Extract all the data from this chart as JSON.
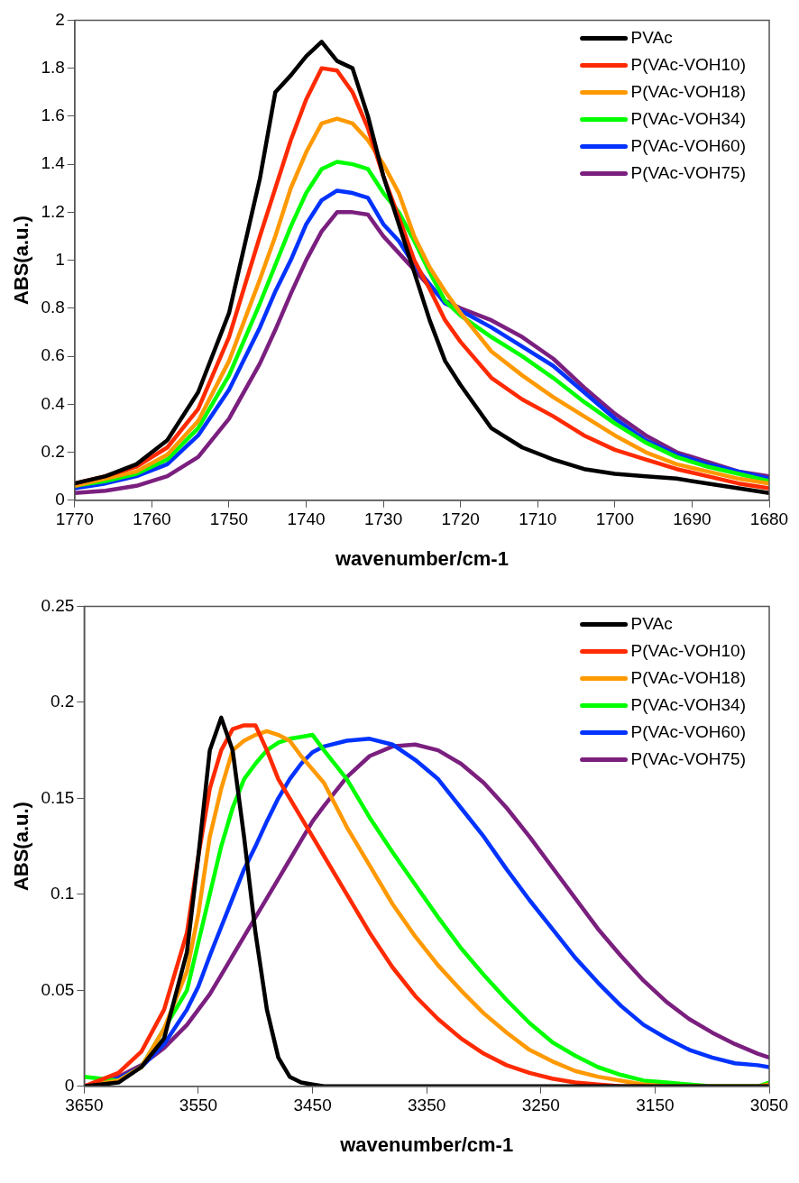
{
  "chart_data": [
    {
      "type": "line",
      "xlabel": "wavenumber/cm-1",
      "ylabel": "ABS(a.u.)",
      "xlim": [
        1770,
        1680
      ],
      "ylim": [
        0,
        2
      ],
      "xticks": [
        1770,
        1760,
        1750,
        1740,
        1730,
        1720,
        1710,
        1700,
        1690,
        1680
      ],
      "yticks": [
        0,
        0.2,
        0.4,
        0.6,
        0.8,
        1,
        1.2,
        1.4,
        1.6,
        1.8,
        2
      ],
      "grid": false,
      "legend": "top right",
      "marker": "none",
      "line_style": "solid",
      "x": [
        1770,
        1766,
        1762,
        1758,
        1754,
        1750,
        1746,
        1744,
        1742,
        1740,
        1738,
        1736,
        1734,
        1732,
        1730,
        1728,
        1726,
        1724,
        1722,
        1720,
        1716,
        1712,
        1708,
        1704,
        1700,
        1696,
        1692,
        1688,
        1684,
        1680
      ],
      "series": [
        {
          "name": "PVAc",
          "color": "#000000",
          "values": [
            0.07,
            0.1,
            0.15,
            0.25,
            0.45,
            0.78,
            1.34,
            1.7,
            1.77,
            1.85,
            1.91,
            1.83,
            1.8,
            1.6,
            1.35,
            1.15,
            0.95,
            0.75,
            0.58,
            0.48,
            0.3,
            0.22,
            0.17,
            0.13,
            0.11,
            0.1,
            0.09,
            0.07,
            0.05,
            0.03
          ]
        },
        {
          "name": "P(VAc-VOH10)",
          "color": "#ff2a00",
          "values": [
            0.07,
            0.1,
            0.14,
            0.22,
            0.38,
            0.68,
            1.1,
            1.3,
            1.5,
            1.67,
            1.8,
            1.79,
            1.7,
            1.55,
            1.35,
            1.18,
            1.0,
            0.88,
            0.75,
            0.66,
            0.51,
            0.42,
            0.35,
            0.27,
            0.21,
            0.17,
            0.13,
            0.1,
            0.07,
            0.05
          ]
        },
        {
          "name": "P(VAc-VOH18)",
          "color": "#ff9900",
          "values": [
            0.06,
            0.09,
            0.12,
            0.19,
            0.33,
            0.58,
            0.92,
            1.1,
            1.3,
            1.45,
            1.57,
            1.59,
            1.57,
            1.5,
            1.4,
            1.28,
            1.1,
            0.97,
            0.87,
            0.78,
            0.62,
            0.52,
            0.43,
            0.35,
            0.27,
            0.2,
            0.15,
            0.12,
            0.09,
            0.07
          ]
        },
        {
          "name": "P(VAc-VOH34)",
          "color": "#00ff00",
          "values": [
            0.06,
            0.08,
            0.11,
            0.17,
            0.3,
            0.52,
            0.82,
            0.98,
            1.14,
            1.28,
            1.38,
            1.41,
            1.4,
            1.38,
            1.28,
            1.2,
            1.08,
            0.95,
            0.83,
            0.77,
            0.68,
            0.6,
            0.51,
            0.41,
            0.32,
            0.24,
            0.18,
            0.14,
            0.11,
            0.08
          ]
        },
        {
          "name": "P(VAc-VOH60)",
          "color": "#0033ff",
          "values": [
            0.05,
            0.07,
            0.1,
            0.15,
            0.27,
            0.46,
            0.72,
            0.87,
            1.0,
            1.15,
            1.25,
            1.29,
            1.28,
            1.26,
            1.15,
            1.08,
            0.98,
            0.9,
            0.82,
            0.79,
            0.72,
            0.64,
            0.56,
            0.45,
            0.34,
            0.25,
            0.19,
            0.15,
            0.12,
            0.09
          ]
        },
        {
          "name": "P(VAc-VOH75)",
          "color": "#7b1f7f",
          "values": [
            0.03,
            0.04,
            0.06,
            0.1,
            0.18,
            0.34,
            0.57,
            0.71,
            0.86,
            1.0,
            1.12,
            1.2,
            1.2,
            1.19,
            1.1,
            1.03,
            0.96,
            0.89,
            0.83,
            0.8,
            0.75,
            0.68,
            0.59,
            0.47,
            0.36,
            0.27,
            0.2,
            0.16,
            0.12,
            0.1
          ]
        }
      ]
    },
    {
      "type": "line",
      "xlabel": "wavenumber/cm-1",
      "ylabel": "ABS(a.u.)",
      "xlim": [
        3650,
        3050
      ],
      "ylim": [
        0,
        0.25
      ],
      "xticks": [
        3650,
        3550,
        3450,
        3350,
        3250,
        3150,
        3050
      ],
      "yticks": [
        0,
        0.05,
        0.1,
        0.15,
        0.2,
        0.25
      ],
      "grid": false,
      "legend": "top right",
      "marker": "none",
      "line_style": "solid",
      "x": [
        3650,
        3620,
        3600,
        3580,
        3560,
        3550,
        3540,
        3530,
        3520,
        3510,
        3500,
        3490,
        3480,
        3470,
        3460,
        3450,
        3440,
        3420,
        3400,
        3380,
        3360,
        3340,
        3320,
        3300,
        3280,
        3260,
        3240,
        3220,
        3200,
        3180,
        3160,
        3140,
        3120,
        3100,
        3080,
        3060,
        3050
      ],
      "series": [
        {
          "name": "PVAc",
          "color": "#000000",
          "values": [
            0,
            0.002,
            0.01,
            0.025,
            0.07,
            0.12,
            0.175,
            0.192,
            0.175,
            0.13,
            0.08,
            0.04,
            0.015,
            0.005,
            0.002,
            0.001,
            0,
            0,
            0,
            0,
            0,
            0,
            0,
            0,
            0,
            0,
            0,
            0,
            0,
            0,
            0,
            0,
            0,
            0,
            0,
            0,
            0
          ]
        },
        {
          "name": "P(VAc-VOH10)",
          "color": "#ff2a00",
          "values": [
            0,
            0.007,
            0.018,
            0.04,
            0.08,
            0.12,
            0.155,
            0.175,
            0.186,
            0.188,
            0.188,
            0.175,
            0.16,
            0.15,
            0.14,
            0.13,
            0.12,
            0.1,
            0.08,
            0.062,
            0.047,
            0.035,
            0.025,
            0.017,
            0.011,
            0.007,
            0.004,
            0.002,
            0.001,
            0,
            0,
            null,
            null,
            null,
            null,
            null,
            null
          ]
        },
        {
          "name": "P(VAc-VOH18)",
          "color": "#ff9900",
          "values": [
            0,
            0.003,
            0.01,
            0.03,
            0.06,
            0.09,
            0.13,
            0.155,
            0.175,
            0.18,
            0.183,
            0.185,
            0.183,
            0.18,
            0.172,
            0.165,
            0.158,
            0.135,
            0.115,
            0.095,
            0.078,
            0.063,
            0.05,
            0.038,
            0.028,
            0.019,
            0.013,
            0.008,
            0.005,
            0.003,
            0.001,
            0,
            0,
            0,
            0,
            0,
            0.001
          ]
        },
        {
          "name": "P(VAc-VOH34)",
          "color": "#00ff00",
          "values": [
            0.005,
            0.003,
            0.01,
            0.03,
            0.05,
            0.075,
            0.1,
            0.125,
            0.145,
            0.16,
            0.168,
            0.175,
            0.179,
            0.181,
            0.182,
            0.183,
            0.175,
            0.16,
            0.14,
            0.122,
            0.105,
            0.088,
            0.072,
            0.058,
            0.045,
            0.033,
            0.023,
            0.016,
            0.01,
            0.006,
            0.003,
            0.002,
            0.001,
            0,
            0,
            0,
            0.002
          ]
        },
        {
          "name": "P(VAc-VOH60)",
          "color": "#0033ff",
          "values": [
            0,
            0.004,
            0.01,
            0.022,
            0.04,
            0.052,
            0.068,
            0.083,
            0.098,
            0.113,
            0.125,
            0.138,
            0.15,
            0.16,
            0.168,
            0.174,
            0.177,
            0.18,
            0.181,
            0.178,
            0.17,
            0.16,
            0.145,
            0.13,
            0.113,
            0.097,
            0.082,
            0.067,
            0.054,
            0.042,
            0.032,
            0.025,
            0.019,
            0.015,
            0.012,
            0.011,
            0.01
          ]
        },
        {
          "name": "P(VAc-VOH75)",
          "color": "#7b1f7f",
          "values": [
            0,
            0.005,
            0.011,
            0.02,
            0.032,
            0.04,
            0.048,
            0.058,
            0.068,
            0.078,
            0.088,
            0.098,
            0.108,
            0.118,
            0.128,
            0.138,
            0.146,
            0.161,
            0.172,
            0.177,
            0.178,
            0.175,
            0.168,
            0.158,
            0.145,
            0.13,
            0.114,
            0.098,
            0.082,
            0.068,
            0.055,
            0.044,
            0.035,
            0.028,
            0.022,
            0.017,
            0.015
          ]
        }
      ]
    }
  ]
}
